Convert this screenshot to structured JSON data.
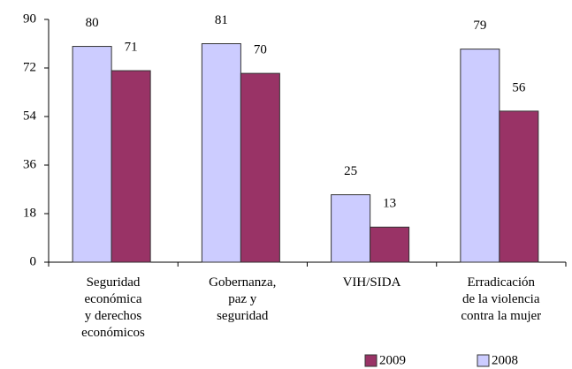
{
  "chart_data": {
    "type": "bar",
    "categories": [
      "Seguridad\neconómica\ny derechos\neconómicos",
      "Gobernanza,\npaz y\nseguridad",
      "VIH/SIDA",
      "Erradicación\nde la violencia\ncontra la mujer"
    ],
    "series": [
      {
        "name": "2008",
        "color": "#ccccff",
        "values": [
          80,
          81,
          25,
          79
        ]
      },
      {
        "name": "2009",
        "color": "#993366",
        "values": [
          71,
          70,
          13,
          56
        ]
      }
    ],
    "ylim": [
      0,
      90
    ],
    "yticks": [
      0,
      18,
      36,
      54,
      72,
      90
    ],
    "grid": false,
    "legend": "bottom-right"
  }
}
